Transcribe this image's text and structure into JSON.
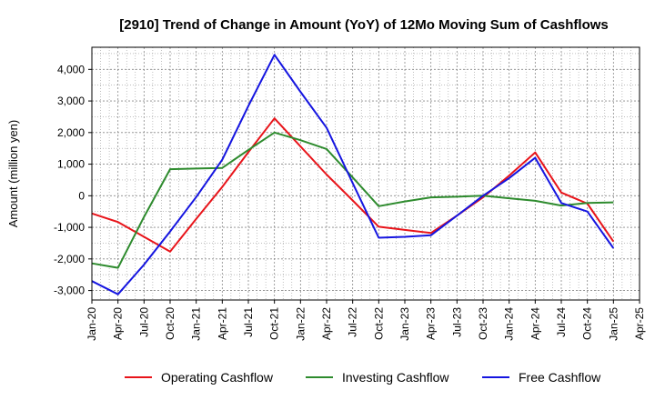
{
  "chart_data": {
    "type": "line",
    "title": "[2910]  Trend of Change in Amount (YoY) of 12Mo Moving Sum of Cashflows",
    "xlabel": "",
    "ylabel": "Amount (million yen)",
    "ylim": [
      -3300,
      4700
    ],
    "yticks": [
      -3000,
      -2000,
      -1000,
      0,
      1000,
      2000,
      3000,
      4000
    ],
    "ytick_labels": [
      "-3,000",
      "-2,000",
      "-1,000",
      "0",
      "1,000",
      "2,000",
      "3,000",
      "4,000"
    ],
    "categories": [
      "Jan-20",
      "Apr-20",
      "Jul-20",
      "Oct-20",
      "Jan-21",
      "Apr-21",
      "Jul-21",
      "Oct-21",
      "Jan-22",
      "Apr-22",
      "Jul-22",
      "Oct-22",
      "Jan-23",
      "Apr-23",
      "Jul-23",
      "Oct-23",
      "Jan-24",
      "Apr-24",
      "Jul-24",
      "Oct-24",
      "Jan-25",
      "Apr-25"
    ],
    "grid": true,
    "legend_position": "bottom",
    "series": [
      {
        "name": "Operating Cashflow",
        "color": "#e8141a",
        "values": [
          -560,
          -830,
          -1300,
          -1770,
          -730,
          280,
          1380,
          2450,
          1560,
          670,
          -150,
          -980,
          -1080,
          -1180,
          -630,
          -50,
          640,
          1370,
          100,
          -250,
          -1450,
          null
        ]
      },
      {
        "name": "Investing Cashflow",
        "color": "#2e8b2e",
        "values": [
          -2140,
          -2280,
          -670,
          840,
          860,
          880,
          1450,
          2000,
          1760,
          1480,
          580,
          -330,
          -180,
          -50,
          -30,
          0,
          -80,
          -160,
          -310,
          -230,
          -210,
          null
        ]
      },
      {
        "name": "Free Cashflow",
        "color": "#1515e0",
        "values": [
          -2700,
          -3120,
          -2180,
          -1130,
          -40,
          1140,
          2840,
          4460,
          3290,
          2150,
          400,
          -1330,
          -1300,
          -1250,
          -630,
          0,
          560,
          1200,
          -230,
          -500,
          -1660,
          null
        ]
      }
    ]
  }
}
